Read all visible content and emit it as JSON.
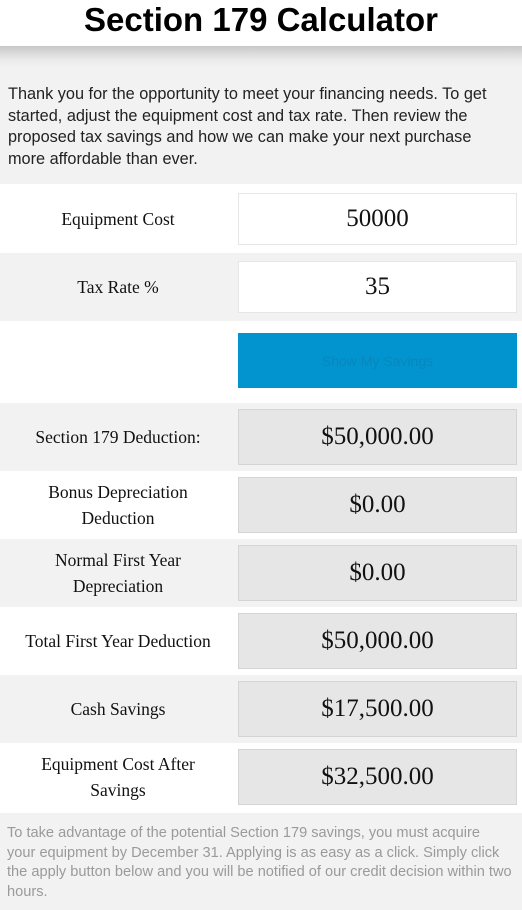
{
  "header": {
    "title": "Section 179 Calculator"
  },
  "intro": {
    "text": "Thank you for the opportunity to meet your financing needs. To get started, adjust the equipment cost and tax rate. Then review the proposed tax savings and how we can make your next purchase more affordable than ever."
  },
  "inputs": {
    "equipment_cost": {
      "label": "Equipment Cost",
      "value": "50000"
    },
    "tax_rate": {
      "label": "Tax Rate %",
      "value": "35"
    }
  },
  "action": {
    "show_savings_label": "Show My Savings"
  },
  "results": {
    "section179": {
      "label": "Section 179 Deduction:",
      "value": "$50,000.00"
    },
    "bonus": {
      "label": "Bonus Depreciation Deduction",
      "value": "$0.00"
    },
    "normal_first_year": {
      "label": "Normal First Year Depreciation",
      "value": "$0.00"
    },
    "total_first_year": {
      "label": "Total First Year Deduction",
      "value": "$50,000.00"
    },
    "cash_savings": {
      "label": "Cash Savings",
      "value": "$17,500.00"
    },
    "cost_after_savings": {
      "label": "Equipment Cost After Savings",
      "value": "$32,500.00"
    }
  },
  "footer": {
    "text": "To take advantage of the potential Section 179 savings, you must acquire your equipment by December 31. Applying is as easy as a click. Simply click the apply button below and you will be notified of our credit decision within two hours."
  },
  "colors": {
    "button": "#0194cf",
    "panel_grey": "#f2f2f2",
    "output_grey": "#e6e6e6"
  }
}
